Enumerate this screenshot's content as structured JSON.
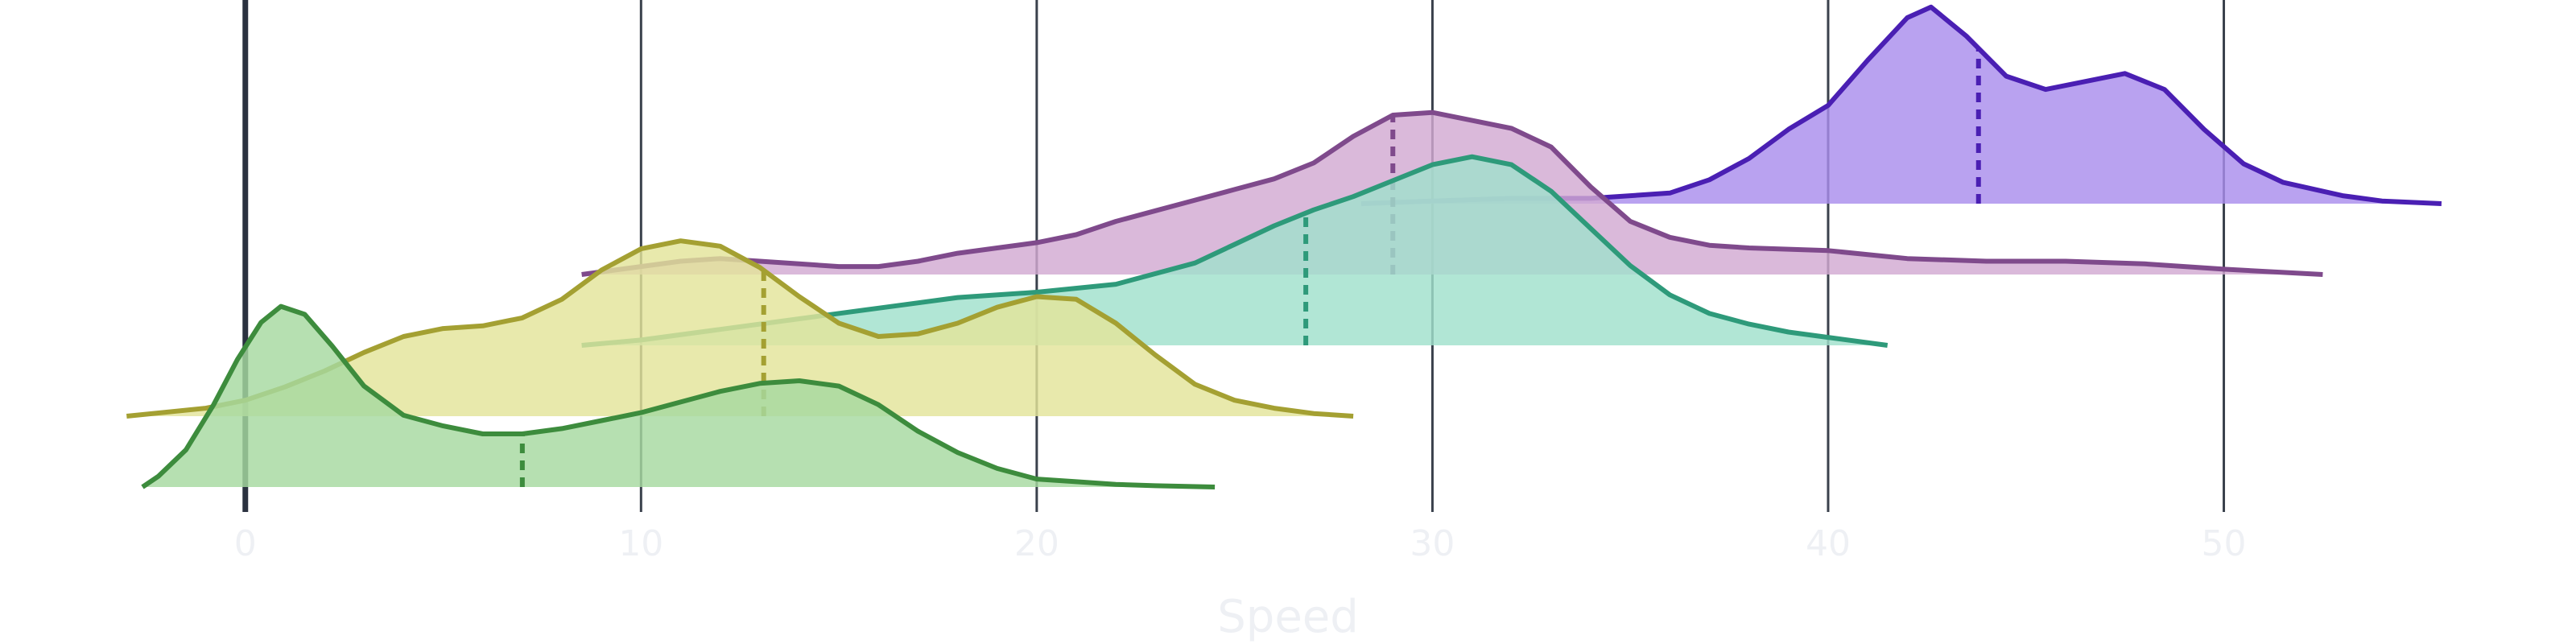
{
  "chart_data": {
    "type": "ridgeline",
    "title": "",
    "xlabel": "Speed",
    "ylabel": "",
    "xlim": [
      -6.2,
      58.9
    ],
    "xticks": [
      0,
      10,
      20,
      30,
      40,
      50
    ],
    "tick_labels": [
      "0",
      "10",
      "20",
      "30",
      "40",
      "50"
    ],
    "grid": "vertical",
    "legend": "none",
    "series": [
      {
        "color": "#3d8c3d",
        "fill": "#a6d9a0",
        "median": 7.0,
        "density": [
          [
            -2.6,
            0.0
          ],
          [
            -2.2,
            0.04
          ],
          [
            -1.5,
            0.14
          ],
          [
            -0.8,
            0.31
          ],
          [
            -0.2,
            0.48
          ],
          [
            0.4,
            0.62
          ],
          [
            0.9,
            0.68
          ],
          [
            1.5,
            0.65
          ],
          [
            2.2,
            0.53
          ],
          [
            3.0,
            0.38
          ],
          [
            4.0,
            0.27
          ],
          [
            5.0,
            0.23
          ],
          [
            6.0,
            0.2
          ],
          [
            7.0,
            0.2
          ],
          [
            8.0,
            0.22
          ],
          [
            9.0,
            0.25
          ],
          [
            10.0,
            0.28
          ],
          [
            11.0,
            0.32
          ],
          [
            12.0,
            0.36
          ],
          [
            13.0,
            0.39
          ],
          [
            14.0,
            0.4
          ],
          [
            15.0,
            0.38
          ],
          [
            16.0,
            0.31
          ],
          [
            17.0,
            0.21
          ],
          [
            18.0,
            0.13
          ],
          [
            19.0,
            0.07
          ],
          [
            20.0,
            0.03
          ],
          [
            21.0,
            0.02
          ],
          [
            22.0,
            0.01
          ],
          [
            23.0,
            0.005
          ],
          [
            24.5,
            0.0
          ]
        ]
      },
      {
        "color": "#a4a032",
        "fill": "#e3e49a",
        "median": 13.1,
        "density": [
          [
            -3.0,
            0.0
          ],
          [
            -1.0,
            0.03
          ],
          [
            0.0,
            0.06
          ],
          [
            1.0,
            0.11
          ],
          [
            2.0,
            0.17
          ],
          [
            3.0,
            0.24
          ],
          [
            4.0,
            0.3
          ],
          [
            5.0,
            0.33
          ],
          [
            6.0,
            0.34
          ],
          [
            7.0,
            0.37
          ],
          [
            8.0,
            0.44
          ],
          [
            9.0,
            0.55
          ],
          [
            10.0,
            0.63
          ],
          [
            11.0,
            0.66
          ],
          [
            12.0,
            0.64
          ],
          [
            13.0,
            0.56
          ],
          [
            14.0,
            0.45
          ],
          [
            15.0,
            0.35
          ],
          [
            16.0,
            0.3
          ],
          [
            17.0,
            0.31
          ],
          [
            18.0,
            0.35
          ],
          [
            19.0,
            0.41
          ],
          [
            20.0,
            0.45
          ],
          [
            21.0,
            0.44
          ],
          [
            22.0,
            0.35
          ],
          [
            23.0,
            0.23
          ],
          [
            24.0,
            0.12
          ],
          [
            25.0,
            0.06
          ],
          [
            26.0,
            0.03
          ],
          [
            27.0,
            0.01
          ],
          [
            28.0,
            0.0
          ]
        ]
      },
      {
        "color": "#2e9a7a",
        "fill": "#a0e0cc",
        "median": 26.8,
        "density": [
          [
            8.5,
            0.0
          ],
          [
            10.0,
            0.02
          ],
          [
            12.0,
            0.06
          ],
          [
            14.0,
            0.1
          ],
          [
            16.0,
            0.14
          ],
          [
            18.0,
            0.18
          ],
          [
            20.0,
            0.2
          ],
          [
            22.0,
            0.23
          ],
          [
            24.0,
            0.31
          ],
          [
            25.0,
            0.38
          ],
          [
            26.0,
            0.45
          ],
          [
            27.0,
            0.51
          ],
          [
            28.0,
            0.56
          ],
          [
            29.0,
            0.62
          ],
          [
            30.0,
            0.68
          ],
          [
            31.0,
            0.71
          ],
          [
            32.0,
            0.68
          ],
          [
            33.0,
            0.58
          ],
          [
            34.0,
            0.44
          ],
          [
            35.0,
            0.3
          ],
          [
            36.0,
            0.19
          ],
          [
            37.0,
            0.12
          ],
          [
            38.0,
            0.08
          ],
          [
            39.0,
            0.05
          ],
          [
            40.0,
            0.03
          ],
          [
            41.5,
            0.0
          ]
        ]
      },
      {
        "color": "#7f4a8c",
        "fill": "#d2a9d2",
        "median": 29.0,
        "density": [
          [
            8.5,
            0.0
          ],
          [
            10.0,
            0.03
          ],
          [
            11.0,
            0.05
          ],
          [
            12.0,
            0.06
          ],
          [
            13.0,
            0.05
          ],
          [
            14.0,
            0.04
          ],
          [
            15.0,
            0.03
          ],
          [
            16.0,
            0.03
          ],
          [
            17.0,
            0.05
          ],
          [
            18.0,
            0.08
          ],
          [
            19.0,
            0.1
          ],
          [
            20.0,
            0.12
          ],
          [
            21.0,
            0.15
          ],
          [
            22.0,
            0.2
          ],
          [
            23.0,
            0.24
          ],
          [
            24.0,
            0.28
          ],
          [
            25.0,
            0.32
          ],
          [
            26.0,
            0.36
          ],
          [
            27.0,
            0.42
          ],
          [
            28.0,
            0.52
          ],
          [
            29.0,
            0.6
          ],
          [
            30.0,
            0.61
          ],
          [
            31.0,
            0.58
          ],
          [
            32.0,
            0.55
          ],
          [
            33.0,
            0.48
          ],
          [
            34.0,
            0.33
          ],
          [
            35.0,
            0.2
          ],
          [
            36.0,
            0.14
          ],
          [
            37.0,
            0.11
          ],
          [
            38.0,
            0.1
          ],
          [
            40.0,
            0.09
          ],
          [
            42.0,
            0.06
          ],
          [
            44.0,
            0.05
          ],
          [
            46.0,
            0.05
          ],
          [
            48.0,
            0.04
          ],
          [
            50.0,
            0.02
          ],
          [
            52.5,
            0.0
          ]
        ]
      },
      {
        "color": "#4a1fb3",
        "fill": "#a98ded",
        "median": 43.8,
        "density": [
          [
            28.2,
            0.0
          ],
          [
            30.0,
            0.01
          ],
          [
            32.0,
            0.02
          ],
          [
            34.0,
            0.02
          ],
          [
            36.0,
            0.04
          ],
          [
            37.0,
            0.09
          ],
          [
            38.0,
            0.17
          ],
          [
            39.0,
            0.28
          ],
          [
            40.0,
            0.37
          ],
          [
            41.0,
            0.54
          ],
          [
            42.0,
            0.7
          ],
          [
            42.6,
            0.74
          ],
          [
            43.5,
            0.63
          ],
          [
            44.5,
            0.48
          ],
          [
            45.5,
            0.43
          ],
          [
            46.5,
            0.46
          ],
          [
            47.5,
            0.49
          ],
          [
            48.5,
            0.43
          ],
          [
            49.5,
            0.28
          ],
          [
            50.5,
            0.15
          ],
          [
            51.5,
            0.08
          ],
          [
            53.0,
            0.03
          ],
          [
            54.0,
            0.01
          ],
          [
            55.5,
            0.0
          ]
        ]
      }
    ]
  }
}
